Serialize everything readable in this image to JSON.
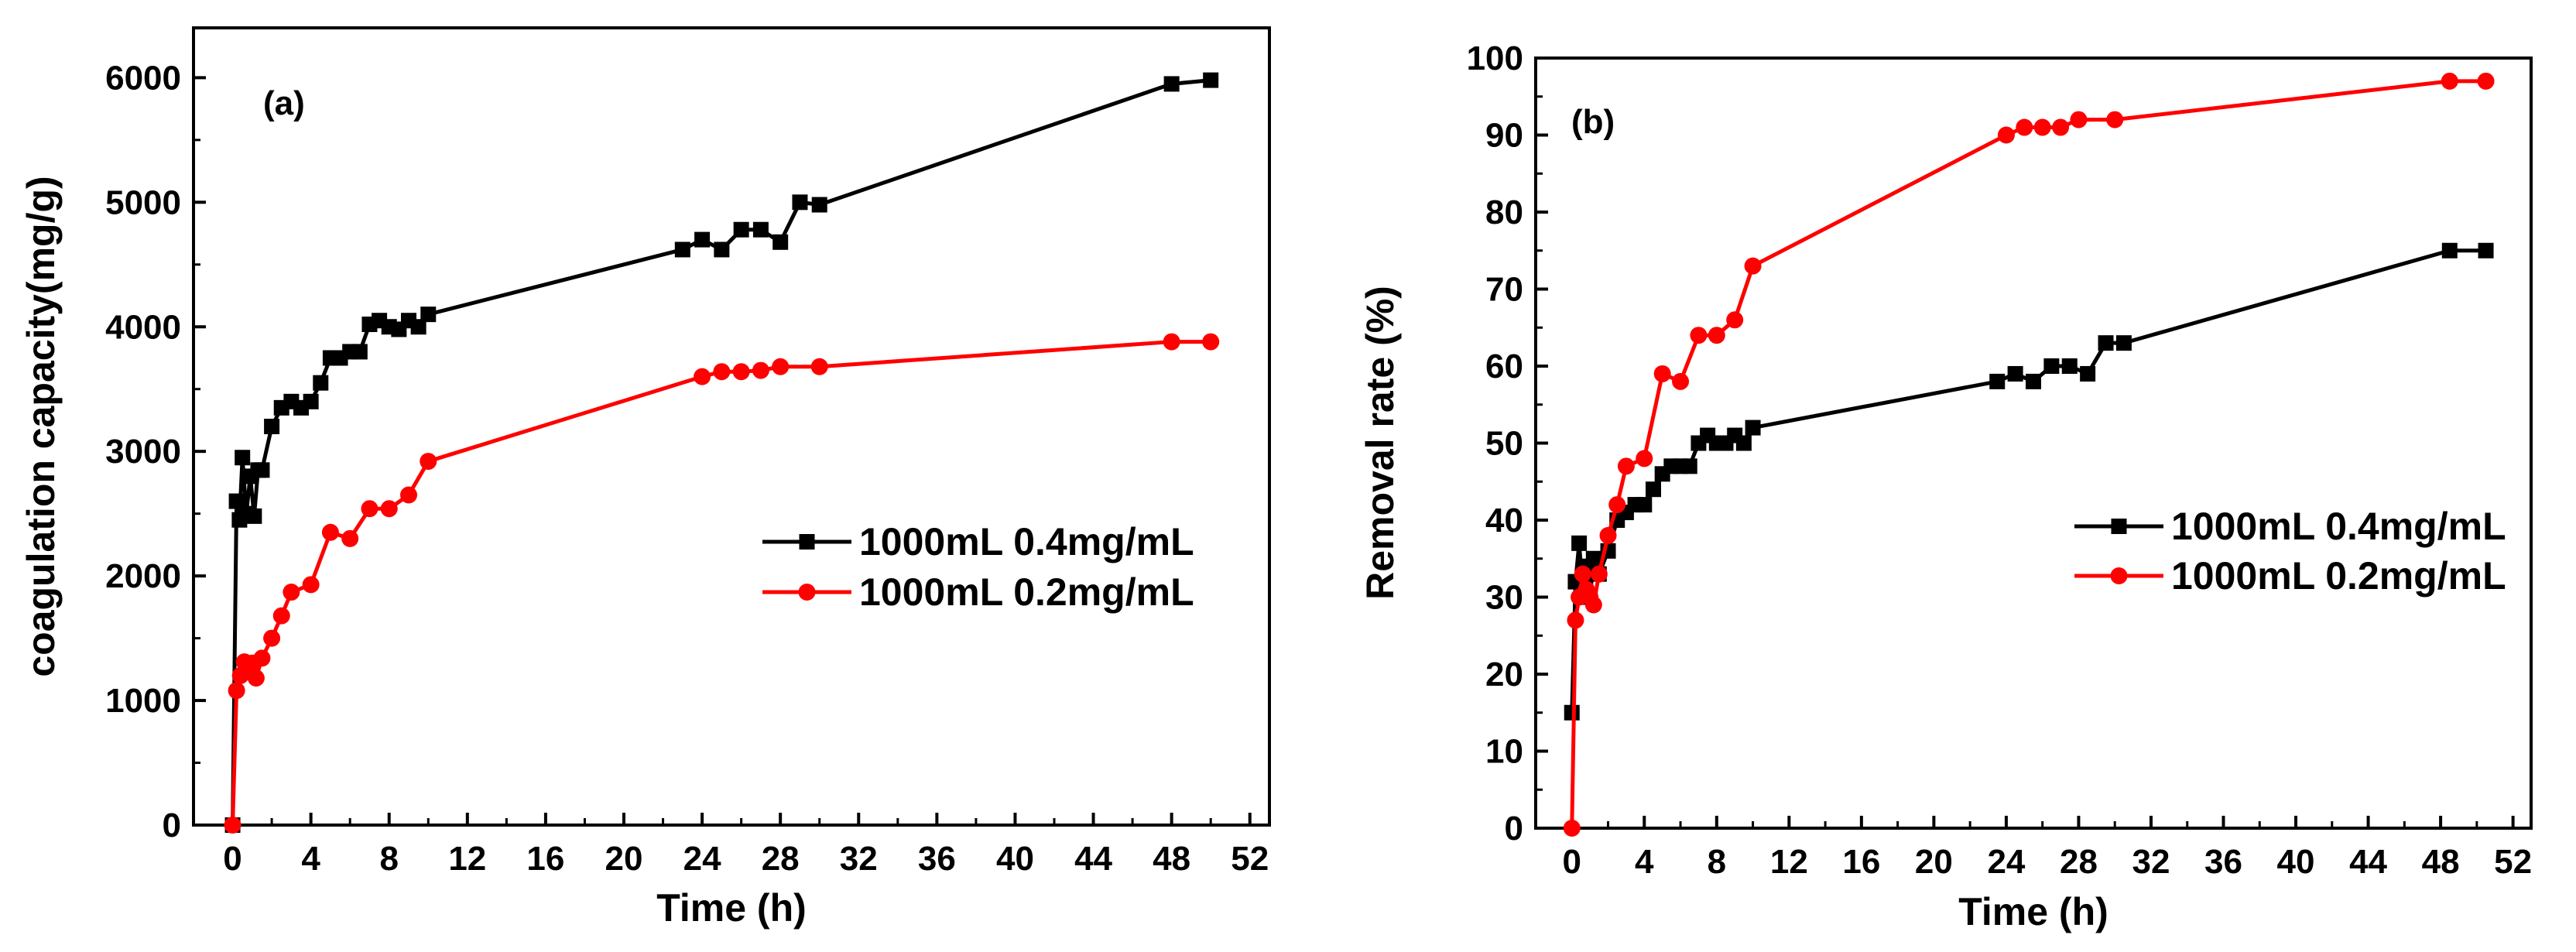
{
  "chart_data": [
    {
      "type": "line",
      "panel_label": "(a)",
      "title": "",
      "xlabel": "Time (h)",
      "ylabel": "coagulation capacity(mg/g)",
      "xlim": [
        -2,
        53
      ],
      "ylim": [
        0,
        6400
      ],
      "xticks": [
        0,
        4,
        8,
        12,
        16,
        20,
        24,
        28,
        32,
        36,
        40,
        44,
        48,
        52
      ],
      "yticks": [
        0,
        1000,
        2000,
        3000,
        4000,
        5000,
        6000
      ],
      "grid": false,
      "legend_position": "center-right",
      "series": [
        {
          "name": "1000mL 0.4mg/mL",
          "color": "#000000",
          "marker": "square",
          "x": [
            0,
            0.2,
            0.35,
            0.5,
            0.7,
            0.9,
            1.1,
            1.3,
            1.5,
            2,
            2.5,
            3,
            3.5,
            4,
            4.5,
            5,
            5.5,
            6,
            6.5,
            7,
            7.5,
            8,
            8.5,
            9,
            9.5,
            10,
            23,
            24,
            25,
            26,
            27,
            28,
            29,
            30,
            48,
            50
          ],
          "y": [
            0,
            2600,
            2450,
            2950,
            2500,
            2800,
            2480,
            2850,
            2850,
            3200,
            3350,
            3400,
            3350,
            3400,
            3550,
            3750,
            3750,
            3800,
            3800,
            4020,
            4050,
            4000,
            3980,
            4050,
            4000,
            4100,
            4620,
            4700,
            4620,
            4780,
            4780,
            4680,
            5000,
            4980,
            5950,
            5980
          ]
        },
        {
          "name": "1000mL 0.2mg/mL",
          "color": "#ff0000",
          "marker": "circle",
          "x": [
            0,
            0.2,
            0.4,
            0.6,
            0.8,
            1,
            1.2,
            1.5,
            2,
            2.5,
            3,
            4,
            5,
            6,
            7,
            8,
            9,
            10,
            24,
            25,
            26,
            27,
            28,
            30,
            48,
            50
          ],
          "y": [
            0,
            1080,
            1200,
            1310,
            1240,
            1300,
            1180,
            1340,
            1500,
            1680,
            1870,
            1930,
            2350,
            2300,
            2540,
            2540,
            2650,
            2920,
            3600,
            3640,
            3640,
            3650,
            3680,
            3680,
            3880,
            3880
          ]
        }
      ]
    },
    {
      "type": "line",
      "panel_label": "(b)",
      "title": "",
      "xlabel": "Time (h)",
      "ylabel": "Removal rate (%)",
      "xlim": [
        -2,
        53
      ],
      "ylim": [
        0,
        100
      ],
      "xticks": [
        0,
        4,
        8,
        12,
        16,
        20,
        24,
        28,
        32,
        36,
        40,
        44,
        48,
        52
      ],
      "yticks": [
        0,
        10,
        20,
        30,
        40,
        50,
        60,
        70,
        80,
        90,
        100
      ],
      "grid": false,
      "legend_position": "center-right",
      "series": [
        {
          "name": "1000mL 0.4mg/mL",
          "color": "#000000",
          "marker": "square",
          "x": [
            0,
            0.2,
            0.4,
            0.6,
            0.8,
            1,
            1.2,
            1.5,
            2,
            2.5,
            3,
            3.5,
            4,
            4.5,
            5,
            5.5,
            6,
            6.5,
            7,
            7.5,
            8,
            8.5,
            9,
            9.5,
            10,
            23.5,
            24.5,
            25.5,
            26.5,
            27.5,
            28.5,
            29.5,
            30.5,
            48.5,
            50.5
          ],
          "y": [
            15,
            32,
            37,
            31,
            34,
            30,
            35,
            33,
            36,
            40,
            41,
            42,
            42,
            44,
            46,
            47,
            47,
            47,
            50,
            51,
            50,
            50,
            51,
            50,
            52,
            58,
            59,
            58,
            60,
            60,
            59,
            63,
            63,
            75,
            75
          ]
        },
        {
          "name": "1000mL 0.2mg/mL",
          "color": "#ff0000",
          "marker": "circle",
          "x": [
            0,
            0.2,
            0.4,
            0.6,
            0.8,
            1,
            1.2,
            1.5,
            2,
            2.5,
            3,
            4,
            5,
            6,
            7,
            8,
            9,
            10,
            24,
            25,
            26,
            27,
            28,
            30,
            48.5,
            50.5
          ],
          "y": [
            0,
            27,
            30,
            33,
            31,
            30,
            29,
            33,
            38,
            42,
            47,
            48,
            59,
            58,
            64,
            64,
            66,
            73,
            90,
            91,
            91,
            91,
            92,
            92,
            97,
            97
          ]
        }
      ]
    }
  ]
}
